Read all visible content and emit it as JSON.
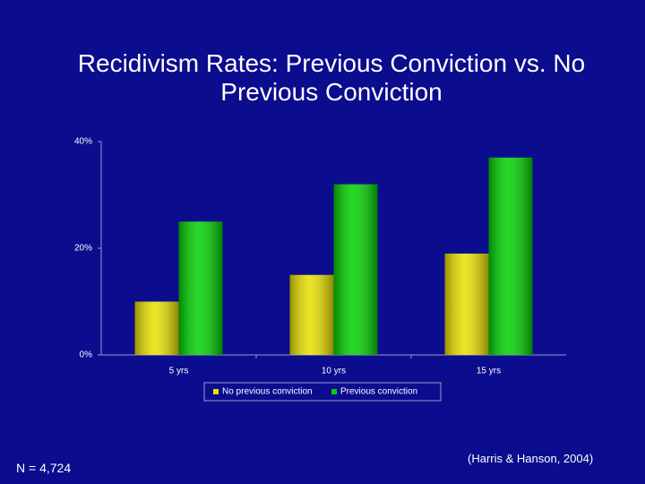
{
  "title": "Recidivism Rates: Previous Conviction vs. No Previous Conviction",
  "footnote_left": "N = 4,724",
  "footnote_right": "(Harris & Hanson, 2004)",
  "chart_data": {
    "type": "bar",
    "categories": [
      "5 yrs",
      "10 yrs",
      "15 yrs"
    ],
    "series": [
      {
        "name": "No previous conviction",
        "color": "#e8e000",
        "values": [
          10,
          15,
          19
        ]
      },
      {
        "name": "Previous conviction",
        "color": "#00d000",
        "values": [
          25,
          32,
          37
        ]
      }
    ],
    "ylim": [
      0,
      40
    ],
    "yticks": [
      {
        "value": 0,
        "label": "0%"
      },
      {
        "value": 20,
        "label": "20%"
      },
      {
        "value": 40,
        "label": "40%"
      }
    ],
    "legend": "bottom"
  }
}
